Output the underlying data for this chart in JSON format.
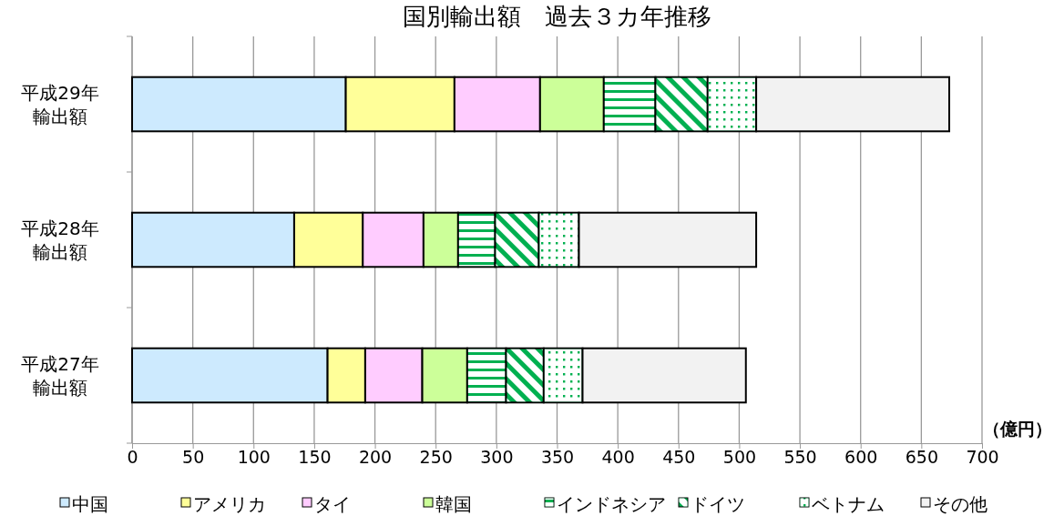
{
  "chart_data": {
    "type": "bar",
    "orientation": "horizontal",
    "stacked": true,
    "title": "国別輸出額　過去３カ年推移",
    "xlabel": "（億円）",
    "categories": [
      "平成29年輸出額",
      "平成28年輸出額",
      "平成27年輸出額"
    ],
    "series": [
      {
        "name": "中国",
        "color": "#cdeafe",
        "values": [
          176,
          133.5,
          161
        ]
      },
      {
        "name": "アメリカ",
        "color": "#ffff99",
        "values": [
          89.5,
          56.5,
          31
        ]
      },
      {
        "name": "タイ",
        "color": "#ffccff",
        "values": [
          70.5,
          50,
          47
        ]
      },
      {
        "name": "韓国",
        "color": "#ccff99",
        "values": [
          52.5,
          28.5,
          37
        ]
      },
      {
        "name": "インドネシア",
        "color": "#00b050",
        "values": [
          42.5,
          30.5,
          32
        ]
      },
      {
        "name": "ドイツ",
        "color": "#00b050",
        "values": [
          43,
          36,
          31
        ]
      },
      {
        "name": "ベトナム",
        "color": "#00b050",
        "values": [
          40,
          33,
          32
        ]
      },
      {
        "name": "その他",
        "color": "#f2f2f2",
        "values": [
          159,
          146,
          134.5
        ]
      }
    ],
    "xlim": [
      0,
      700
    ],
    "xticks": [
      0,
      50,
      100,
      150,
      200,
      250,
      300,
      350,
      400,
      450,
      500,
      550,
      600,
      650,
      700
    ],
    "grid": "x",
    "legend": "bottom"
  }
}
